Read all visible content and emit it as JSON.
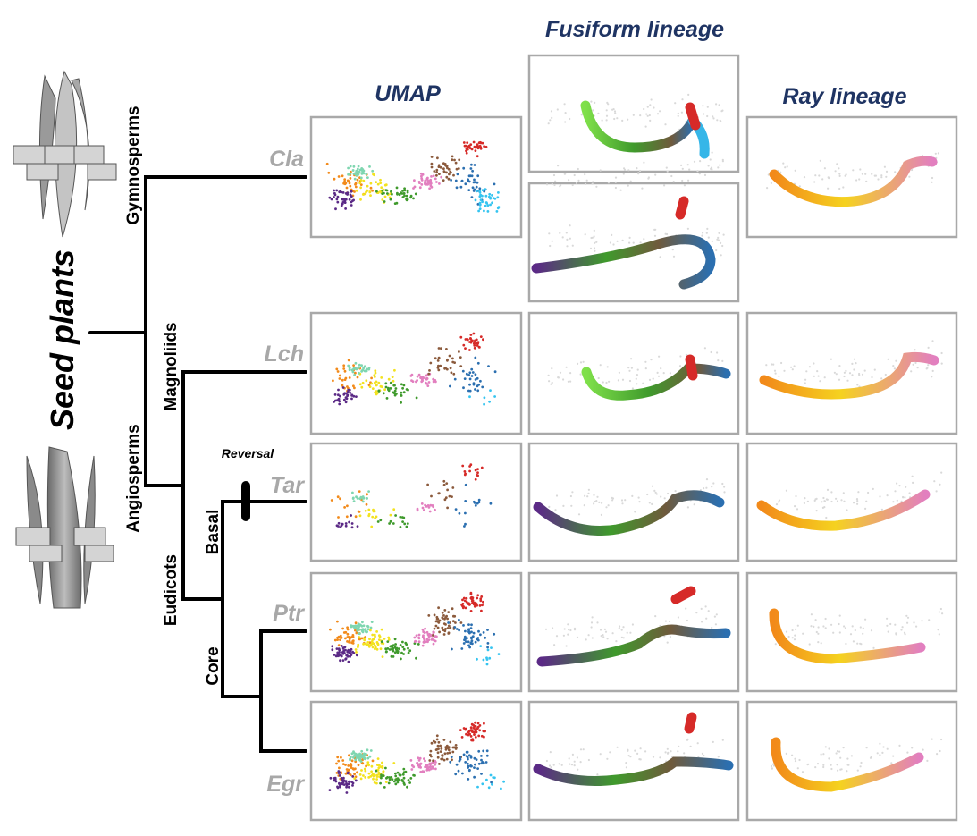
{
  "headers": {
    "umap": "UMAP",
    "fusiform": "Fusiform lineage",
    "ray": "Ray lineage"
  },
  "tree": {
    "root": "Seed plants",
    "clades": {
      "gymnosperms": "Gymnosperms",
      "angiosperms": "Angiosperms",
      "magnoliids": "Magnoliids",
      "eudicots": "Eudicots",
      "basal": "Basal",
      "core": "Core"
    },
    "event": "Reversal",
    "species": [
      "Cla",
      "Lch",
      "Tar",
      "Ptr",
      "Egr"
    ]
  },
  "colors": {
    "header": "#1f3463",
    "species_label": "#a8a8a8",
    "panel_border": "#a9a9a9",
    "background_cells": "#d9d9d9",
    "fusiform_gradient": [
      "#5b2a86",
      "#3f9a2c",
      "#6f5a3c",
      "#2b6fb0"
    ],
    "fusiform_green_start": "#7fe04a",
    "fusiform_end_cyan": "#35b6e8",
    "ray_gradient": [
      "#f28a1a",
      "#f5d21f",
      "#e27fbf"
    ],
    "fusiform_initial": "#d62a28",
    "umap_clusters": [
      "#f28a1a",
      "#f3e21f",
      "#3f9a2c",
      "#5b2a86",
      "#e27fbf",
      "#8b5a3c",
      "#2b6fb0",
      "#d62a28",
      "#35c4f0",
      "#7fd6b0"
    ]
  },
  "icons": {
    "gymnosperm_cells": "tracheid-ray-cells-icon",
    "angiosperm_cells": "vessel-fiber-ray-cells-icon"
  }
}
